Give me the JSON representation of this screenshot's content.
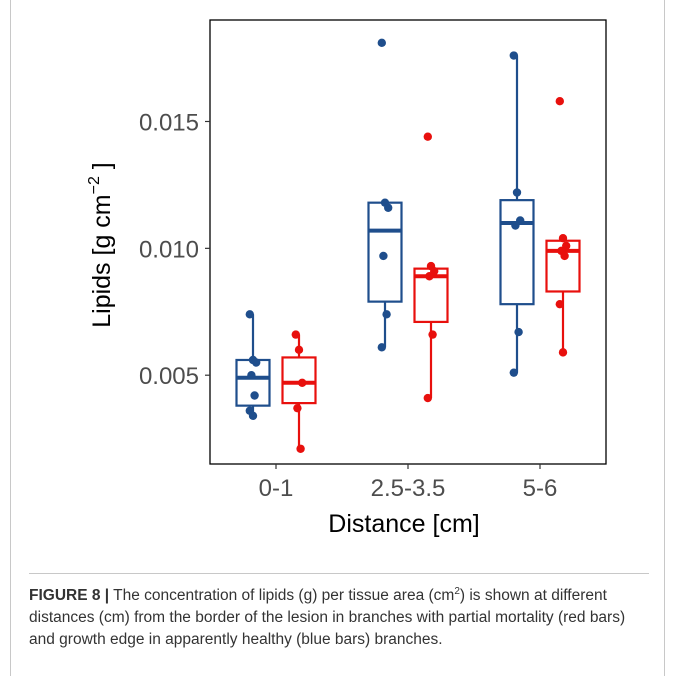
{
  "chart_data": {
    "type": "boxplot",
    "title": "",
    "xlabel": "Distance [cm]",
    "ylabel": "Lipids [g cm",
    "ylabel_exponent": "−2",
    "ylabel_close": " ]",
    "categories": [
      "0-1",
      "2.5-3.5",
      "5-6"
    ],
    "y_ticks": [
      "0.005",
      "0.010",
      "0.015"
    ],
    "y_tick_values": [
      0.005,
      0.01,
      0.015
    ],
    "ylim": [
      0.0015,
      0.019
    ],
    "grid": false,
    "series": [
      {
        "color": "#1f4e8c",
        "boxes": [
          {
            "q1": 0.0038,
            "median": 0.0049,
            "q3": 0.0056,
            "whisker_low": 0.0033,
            "whisker_high": 0.0074,
            "points": [
              0.0074,
              0.0056,
              0.0055,
              0.005,
              0.0042,
              0.0036,
              0.0034
            ]
          },
          {
            "q1": 0.0079,
            "median": 0.0107,
            "q3": 0.0118,
            "whisker_low": 0.0061,
            "whisker_high": 0.0118,
            "points": [
              0.0181,
              0.0118,
              0.0116,
              0.0097,
              0.0074,
              0.0061
            ]
          },
          {
            "q1": 0.0078,
            "median": 0.011,
            "q3": 0.0119,
            "whisker_low": 0.0051,
            "whisker_high": 0.0176,
            "points": [
              0.0176,
              0.0122,
              0.0111,
              0.0109,
              0.0067,
              0.0051
            ]
          }
        ]
      },
      {
        "color": "#e8100d",
        "boxes": [
          {
            "q1": 0.0039,
            "median": 0.0047,
            "q3": 0.0057,
            "whisker_low": 0.0021,
            "whisker_high": 0.0066,
            "points": [
              0.0066,
              0.006,
              0.0047,
              0.0037,
              0.0021
            ]
          },
          {
            "q1": 0.0071,
            "median": 0.0089,
            "q3": 0.0092,
            "whisker_low": 0.0041,
            "whisker_high": 0.0092,
            "points": [
              0.0144,
              0.0093,
              0.0091,
              0.0089,
              0.0066,
              0.0041
            ]
          },
          {
            "q1": 0.0083,
            "median": 0.0099,
            "q3": 0.0103,
            "whisker_low": 0.0059,
            "whisker_high": 0.0103,
            "points": [
              0.0158,
              0.0104,
              0.0101,
              0.0099,
              0.0097,
              0.0078,
              0.0059
            ]
          }
        ]
      }
    ]
  },
  "caption": {
    "label": "FIGURE 8 |",
    "text_1": " The concentration of lipids (g) per tissue area (cm",
    "superscript": "2",
    "text_2": ") is shown at different distances (cm) from the border of the lesion in branches with partial mortality (red bars) and growth edge in apparently healthy (blue bars) branches."
  }
}
